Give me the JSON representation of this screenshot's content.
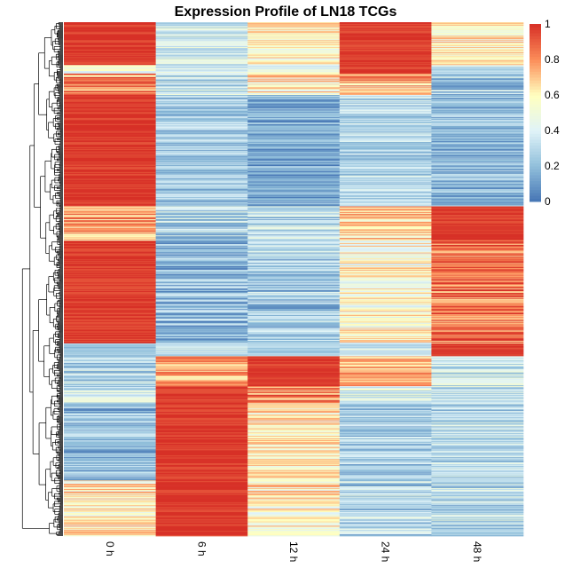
{
  "chart_data": {
    "type": "heatmap",
    "title": "Expression Profile of LN18 TCGs",
    "columns": [
      "0 h",
      "6 h",
      "12 h",
      "24 h",
      "48 h"
    ],
    "row_count_estimate": 600,
    "color_scale": {
      "min": 0,
      "max": 1,
      "ticks": [
        "0",
        "0.2",
        "0.4",
        "0.6",
        "0.8",
        "1"
      ],
      "stops": [
        {
          "value": 0.0,
          "color": "#4575b4"
        },
        {
          "value": 0.2,
          "color": "#91bfdb"
        },
        {
          "value": 0.4,
          "color": "#e0f3f8"
        },
        {
          "value": 0.6,
          "color": "#ffffbf"
        },
        {
          "value": 0.8,
          "color": "#fc8d59"
        },
        {
          "value": 1.0,
          "color": "#d73027"
        }
      ]
    },
    "cluster_blocks": [
      {
        "rows": 50,
        "profile": [
          1.0,
          0.35,
          0.6,
          0.95,
          0.6
        ],
        "noise": 0.18
      },
      {
        "rows": 10,
        "profile": [
          0.5,
          0.35,
          0.45,
          1.0,
          0.35
        ],
        "noise": 0.15
      },
      {
        "rows": 25,
        "profile": [
          0.8,
          0.35,
          0.6,
          0.75,
          0.25
        ],
        "noise": 0.22
      },
      {
        "rows": 130,
        "profile": [
          1.0,
          0.25,
          0.15,
          0.3,
          0.2
        ],
        "noise": 0.16
      },
      {
        "rows": 40,
        "profile": [
          0.75,
          0.3,
          0.3,
          0.7,
          1.0
        ],
        "noise": 0.2
      },
      {
        "rows": 120,
        "profile": [
          0.95,
          0.2,
          0.25,
          0.55,
          0.85
        ],
        "noise": 0.2
      },
      {
        "rows": 15,
        "profile": [
          0.2,
          0.35,
          0.3,
          0.35,
          1.0
        ],
        "noise": 0.12
      },
      {
        "rows": 35,
        "profile": [
          0.3,
          0.75,
          1.0,
          0.75,
          0.35
        ],
        "noise": 0.18
      },
      {
        "rows": 20,
        "profile": [
          0.35,
          1.0,
          0.8,
          0.4,
          0.35
        ],
        "noise": 0.18
      },
      {
        "rows": 90,
        "profile": [
          0.2,
          1.0,
          0.6,
          0.25,
          0.3
        ],
        "noise": 0.18
      },
      {
        "rows": 65,
        "profile": [
          0.6,
          1.0,
          0.6,
          0.3,
          0.3
        ],
        "noise": 0.2
      }
    ],
    "dendrogram": "row clustering tree shown on left; column order unclustered"
  }
}
